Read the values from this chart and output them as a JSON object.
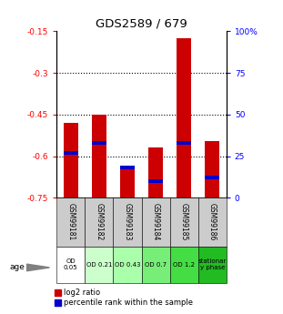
{
  "title": "GDS2589 / 679",
  "samples": [
    "GSM99181",
    "GSM99182",
    "GSM99183",
    "GSM99184",
    "GSM99185",
    "GSM99186"
  ],
  "log2_ratio": [
    -0.48,
    -0.45,
    -0.635,
    -0.57,
    -0.175,
    -0.545
  ],
  "percentile_rank": [
    27,
    33,
    18,
    10,
    33,
    12
  ],
  "ylim": [
    -0.75,
    -0.15
  ],
  "yticks": [
    -0.75,
    -0.6,
    -0.45,
    -0.3,
    -0.15
  ],
  "ytick_labels": [
    "-0.75",
    "-0.6",
    "-0.45",
    "-0.3",
    "-0.15"
  ],
  "right_yticks": [
    0,
    25,
    50,
    75,
    100
  ],
  "right_ytick_labels": [
    "0",
    "25",
    "50",
    "75",
    "100%"
  ],
  "bar_color": "#cc0000",
  "percentile_color": "#0000cc",
  "bar_width": 0.5,
  "age_labels": [
    "OD\n0.05",
    "OD 0.21",
    "OD 0.43",
    "OD 0.7",
    "OD 1.2",
    "stationar\ny phase"
  ],
  "age_bg_colors": [
    "#ffffff",
    "#ccffcc",
    "#aaffaa",
    "#77ee77",
    "#44dd44",
    "#22bb22"
  ],
  "sample_bg_color": "#cccccc",
  "dotted_yticks": [
    -0.3,
    -0.45,
    -0.6
  ],
  "legend_red_label": "log2 ratio",
  "legend_blue_label": "percentile rank within the sample",
  "fig_width": 3.11,
  "fig_height": 3.45
}
